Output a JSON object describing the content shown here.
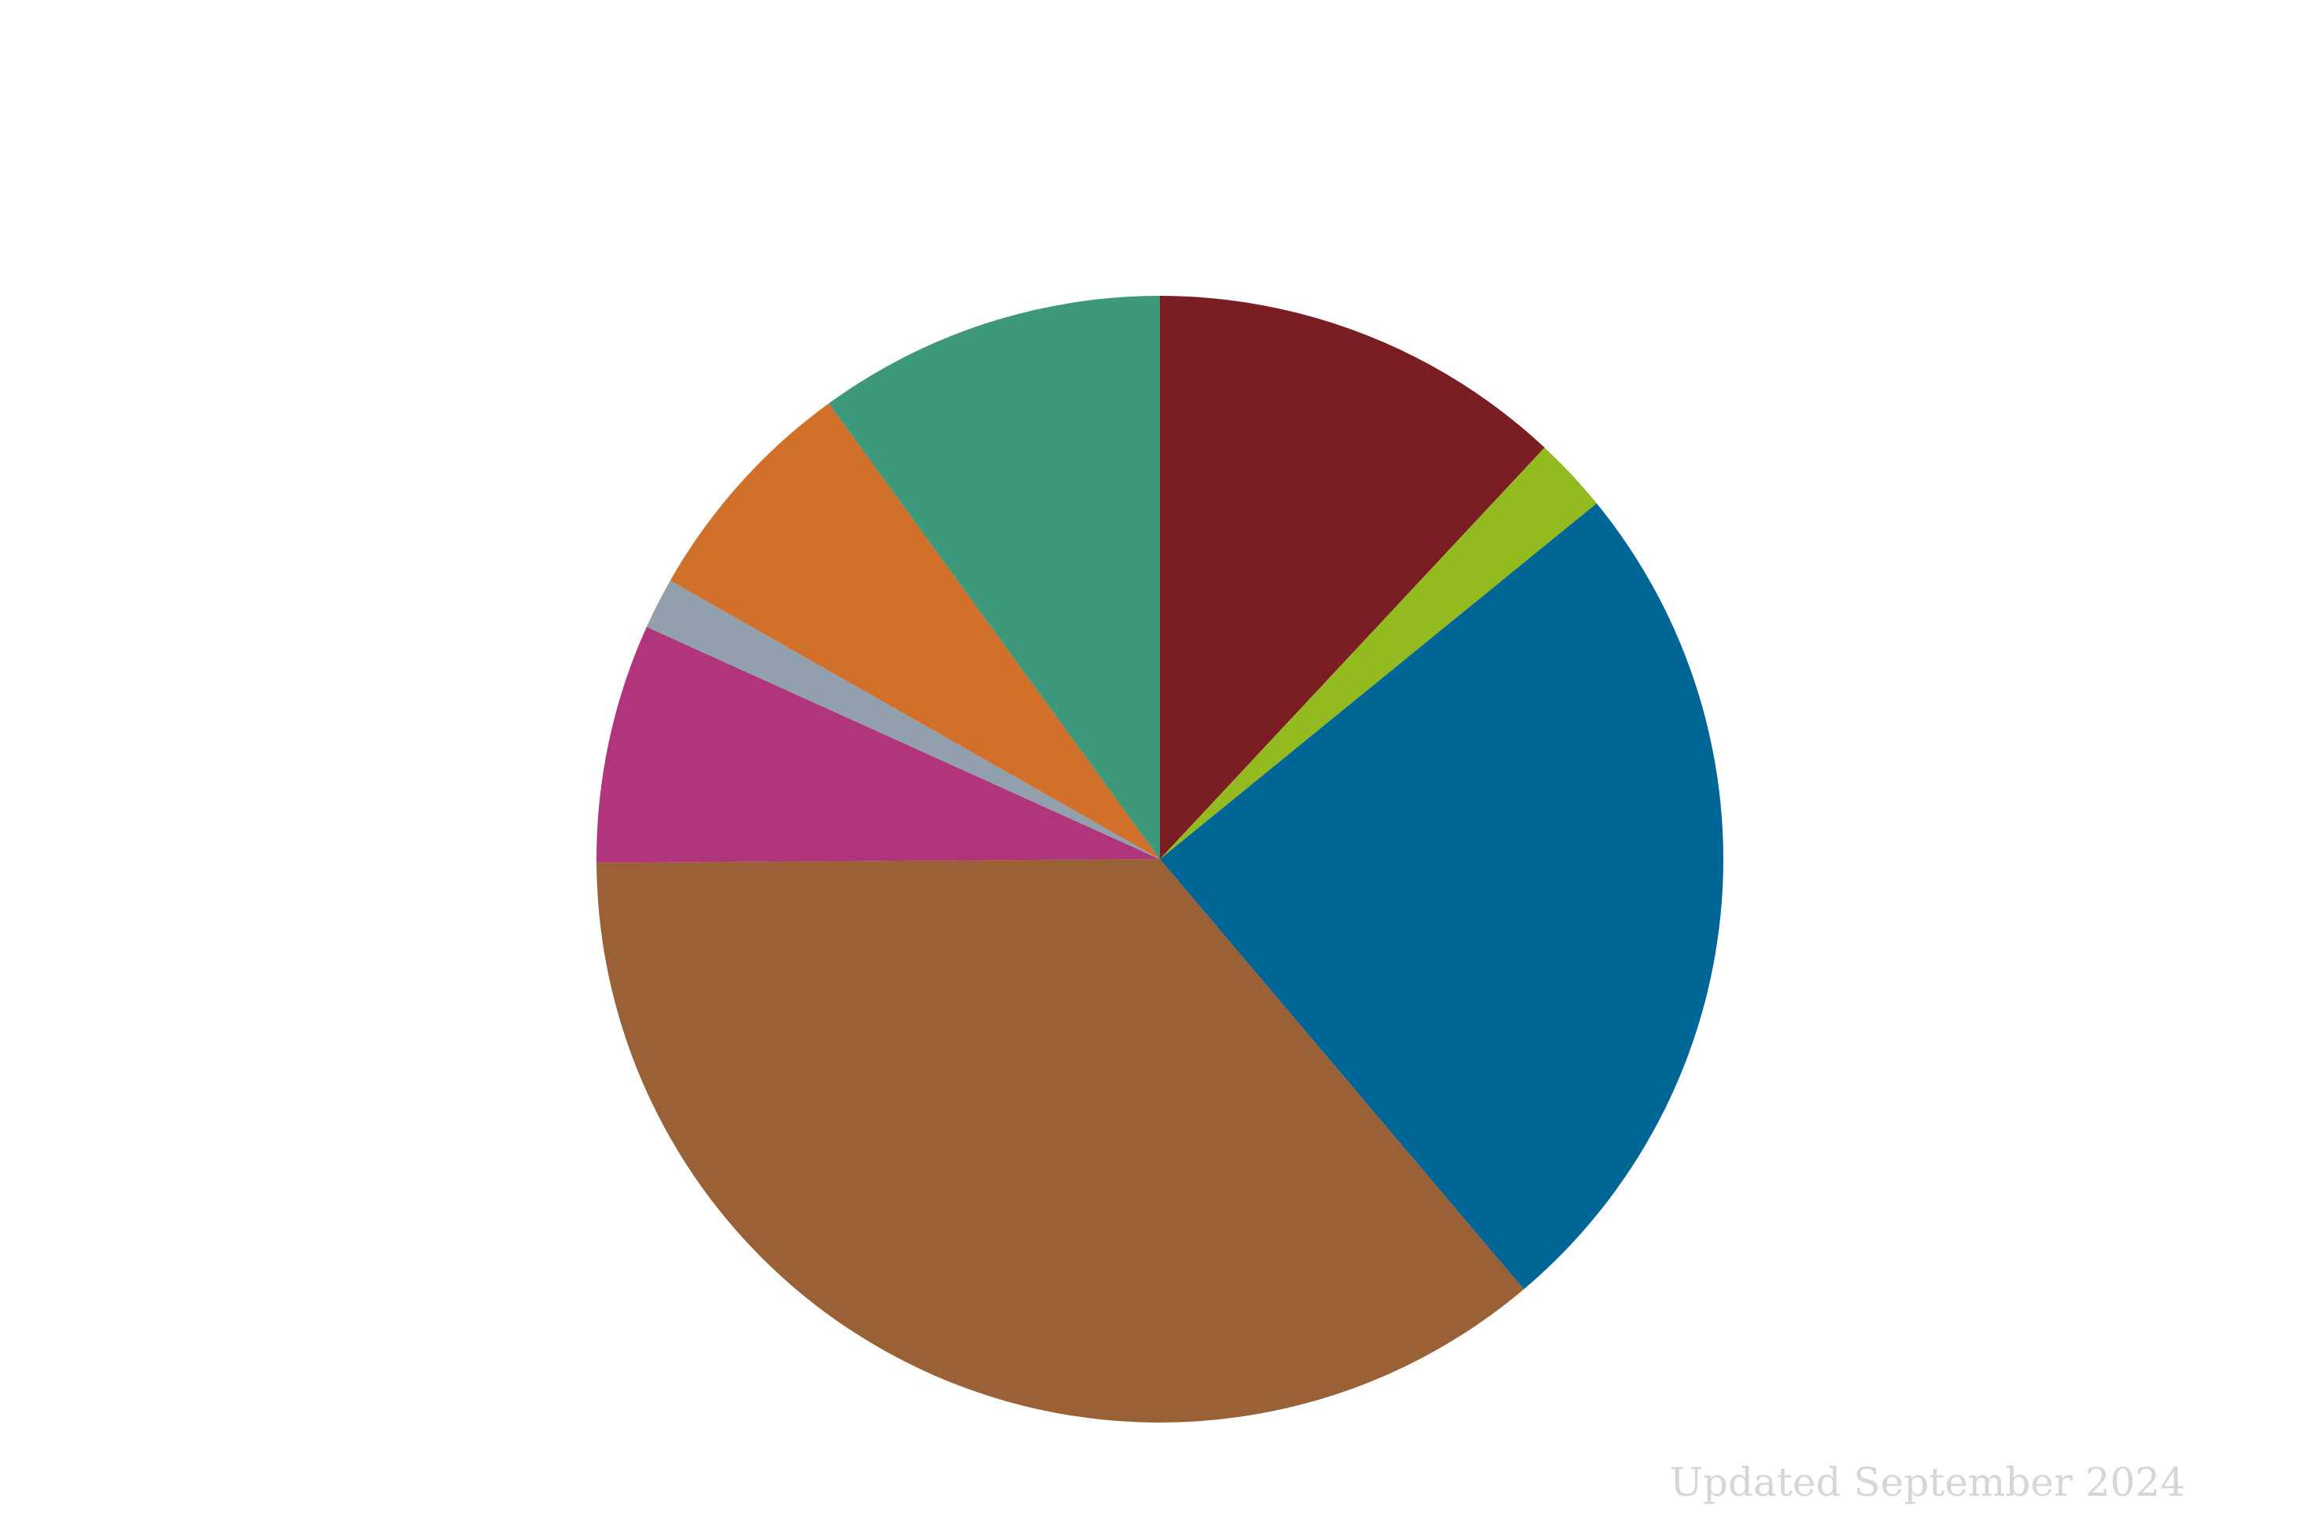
{
  "footnote": "Updated September 2024",
  "chart_data": {
    "type": "pie",
    "title": "",
    "start_angle_deg": 0,
    "direction": "clockwise",
    "slices": [
      {
        "value": 12.2,
        "color": "#7a1e24"
      },
      {
        "value": 2.2,
        "color": "#93ba1f"
      },
      {
        "value": 25.2,
        "color": "#006696"
      },
      {
        "value": 36.8,
        "color": "#9a6137"
      },
      {
        "value": 7.0,
        "color": "#b0357c"
      },
      {
        "value": 1.5,
        "color": "#929fad"
      },
      {
        "value": 6.9,
        "color": "#d0702a"
      },
      {
        "value": 10.2,
        "color": "#3e987b"
      }
    ]
  }
}
